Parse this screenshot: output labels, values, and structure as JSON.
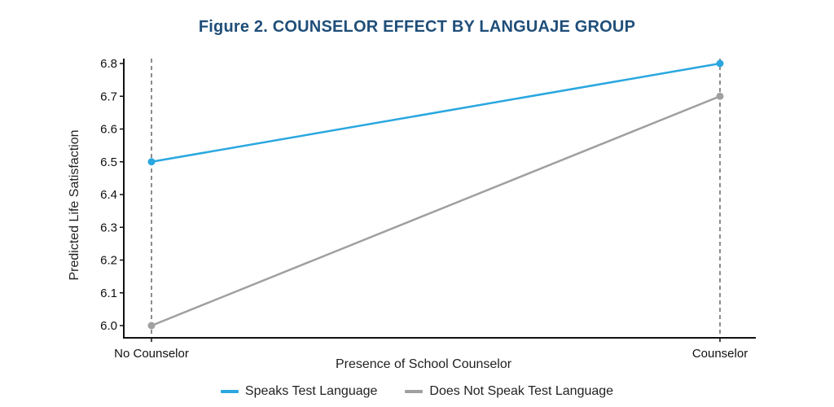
{
  "chart_data": {
    "type": "line",
    "title": "Figure 2. COUNSELOR EFFECT BY LANGUAJE GROUP",
    "xlabel": "Presence of School Counselor",
    "ylabel": "Predicted Life Satisfaction",
    "categories": [
      "No Counselor",
      "Counselor"
    ],
    "ylim": [
      6.0,
      6.8
    ],
    "yticks": [
      "6.0",
      "6.1",
      "6.2",
      "6.3",
      "6.4",
      "6.5",
      "6.6",
      "6.7",
      "6.8"
    ],
    "grid": false,
    "legend_position": "bottom",
    "series": [
      {
        "name": "Speaks Test Language",
        "values": [
          6.5,
          6.8
        ],
        "color": "#2aa7e0"
      },
      {
        "name": "Does Not Speak Test Language",
        "values": [
          6.0,
          6.7
        ],
        "color": "#a0a0a0"
      }
    ]
  }
}
